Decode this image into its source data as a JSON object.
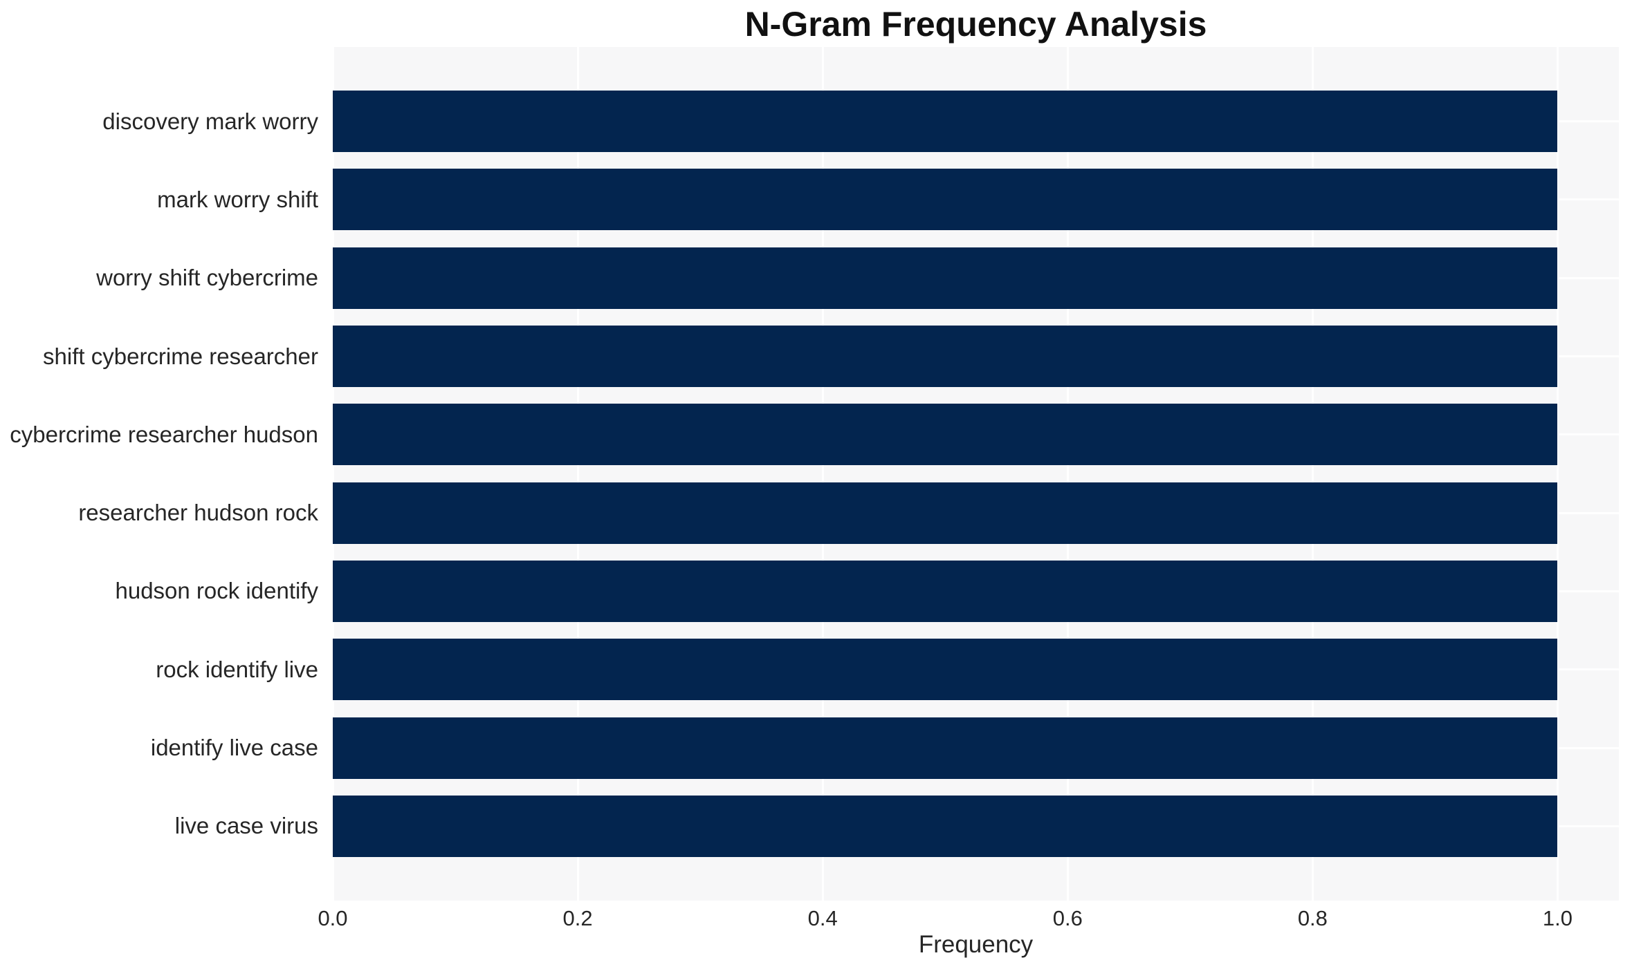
{
  "chart_data": {
    "type": "bar",
    "orientation": "horizontal",
    "title": "N-Gram Frequency Analysis",
    "xlabel": "Frequency",
    "ylabel": "",
    "categories": [
      "discovery mark worry",
      "mark worry shift",
      "worry shift cybercrime",
      "shift cybercrime researcher",
      "cybercrime researcher hudson",
      "researcher hudson rock",
      "hudson rock identify",
      "rock identify live",
      "identify live case",
      "live case virus"
    ],
    "values": [
      1.0,
      1.0,
      1.0,
      1.0,
      1.0,
      1.0,
      1.0,
      1.0,
      1.0,
      1.0
    ],
    "xticks": [
      0.0,
      0.2,
      0.4,
      0.6,
      0.8,
      1.0
    ],
    "xtick_labels": [
      "0.0",
      "0.2",
      "0.4",
      "0.6",
      "0.8",
      "1.0"
    ],
    "xlim": [
      0,
      1.05
    ],
    "grid": true,
    "legend": null,
    "colors": {
      "bar": "#03254f",
      "plot_bg": "#f7f7f8",
      "grid_line": "#ffffff",
      "text": "#262626",
      "title": "#111111",
      "page_bg": "#ffffff"
    }
  }
}
